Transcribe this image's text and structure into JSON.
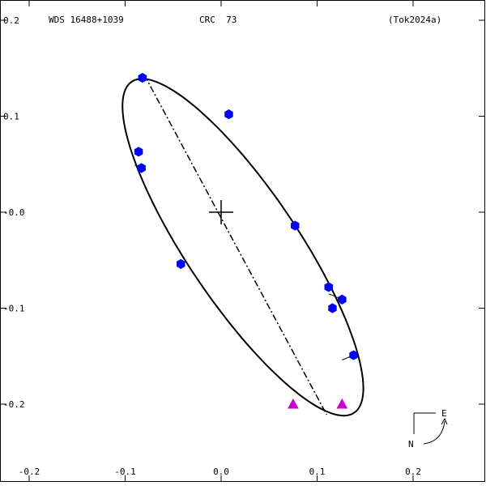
{
  "header": {
    "system": "WDS 16488+1039",
    "discoverer": "CRC  73",
    "reference": "(Tok2024a)"
  },
  "compass": {
    "east_label": "E",
    "north_label": "N"
  },
  "chart_data": {
    "type": "scatter",
    "title": "",
    "xlabel": "",
    "ylabel": "",
    "xlim": [
      -0.2,
      0.27
    ],
    "ylim": [
      -0.27,
      0.2
    ],
    "x_ticks": [
      {
        "value": -0.2,
        "label": "-0.2"
      },
      {
        "value": -0.1,
        "label": "-0.1"
      },
      {
        "value": 0.0,
        "label": "0.0"
      },
      {
        "value": 0.1,
        "label": "0.1"
      },
      {
        "value": 0.2,
        "label": "0.2"
      }
    ],
    "y_ticks": [
      {
        "value": 0.2,
        "label": "0.2"
      },
      {
        "value": 0.1,
        "label": "0.1"
      },
      {
        "value": 0.0,
        "label": "-0.0"
      },
      {
        "value": -0.1,
        "label": "-0.1"
      },
      {
        "value": -0.2,
        "label": "-0.2"
      }
    ],
    "grid": false,
    "primary": {
      "x": 0.0,
      "y": 0.0
    },
    "orbit_ellipse": {
      "center": [
        0.0227,
        -0.0365
      ],
      "semi_major": 0.2078,
      "semi_minor": 0.0579,
      "major_axis_angle_deg": 123.9
    },
    "line_of_apsides": [
      [
        -0.08,
        0.143
      ],
      [
        0.11,
        -0.211
      ]
    ],
    "series": [
      {
        "marker": "hexagon",
        "color": "#0000ff",
        "points": [
          {
            "x": -0.082,
            "y": 0.14,
            "fx": -0.079,
            "fy": 0.142
          },
          {
            "x": 0.008,
            "y": 0.102,
            "fx": 0.008,
            "fy": 0.103
          },
          {
            "x": -0.086,
            "y": 0.063,
            "fx": -0.09,
            "fy": 0.063
          },
          {
            "x": -0.083,
            "y": 0.046,
            "fx": -0.09,
            "fy": 0.049
          },
          {
            "x": 0.077,
            "y": -0.014,
            "fx": 0.074,
            "fy": -0.013
          },
          {
            "x": -0.042,
            "y": -0.054,
            "fx": -0.043,
            "fy": -0.054
          },
          {
            "x": 0.112,
            "y": -0.078,
            "fx": 0.11,
            "fy": -0.078
          },
          {
            "x": 0.126,
            "y": -0.091,
            "fx": 0.112,
            "fy": -0.085
          },
          {
            "x": 0.116,
            "y": -0.1,
            "fx": 0.113,
            "fy": -0.099
          },
          {
            "x": 0.138,
            "y": -0.149,
            "fx": 0.126,
            "fy": -0.154
          }
        ]
      },
      {
        "marker": "triangle",
        "color": "#cc00cc",
        "points": [
          {
            "x": 0.075,
            "y": -0.2
          },
          {
            "x": 0.126,
            "y": -0.2
          }
        ]
      }
    ]
  }
}
